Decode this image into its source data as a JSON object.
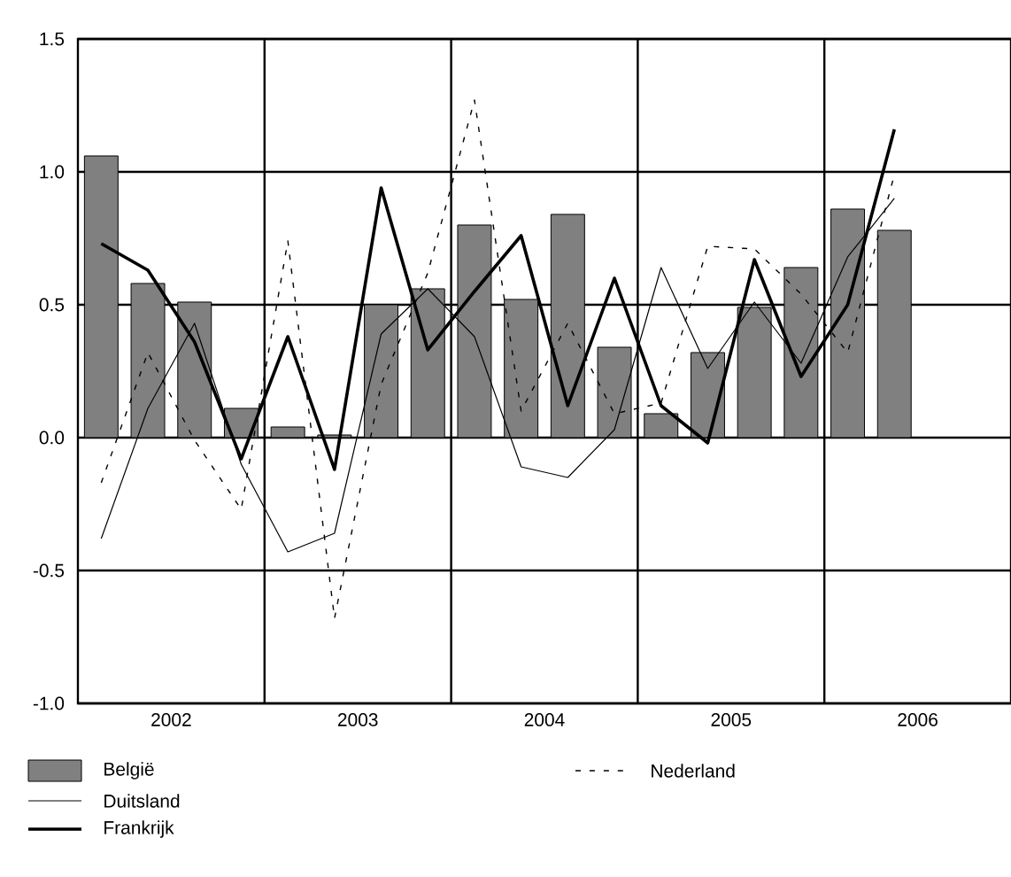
{
  "chart_data": {
    "type": "bar",
    "x": [
      2002.125,
      2002.375,
      2002.625,
      2002.875,
      2003.125,
      2003.375,
      2003.625,
      2003.875,
      2004.125,
      2004.375,
      2004.625,
      2004.875,
      2005.125,
      2005.375,
      2005.625,
      2005.875,
      2006.125,
      2006.375
    ],
    "xlim": [
      2002,
      2007
    ],
    "xticks": [
      {
        "value": 2002.5,
        "label": "2002"
      },
      {
        "value": 2003.5,
        "label": "2003"
      },
      {
        "value": 2004.5,
        "label": "2004"
      },
      {
        "value": 2005.5,
        "label": "2005"
      },
      {
        "value": 2006.5,
        "label": "2006"
      },
      {
        "value": 2003,
        "label": null
      },
      {
        "value": 2004,
        "label": null
      },
      {
        "value": 2005,
        "label": null
      },
      {
        "value": 2006,
        "label": null
      }
    ],
    "ylim": [
      -1,
      1.5
    ],
    "yticks": [
      {
        "value": -1,
        "label": "-1.0"
      },
      {
        "value": -0.5,
        "label": "-0.5"
      },
      {
        "value": 0,
        "label": "0.0"
      },
      {
        "value": 0.5,
        "label": "0.5"
      },
      {
        "value": 1,
        "label": "1.0"
      },
      {
        "value": 1.5,
        "label": "1.5"
      }
    ],
    "grid": true,
    "legend": "bottom",
    "series": [
      {
        "name": "België",
        "color": "#808080",
        "values": [
          1.06,
          0.58,
          0.51,
          0.11,
          0.04,
          0.01,
          0.5,
          0.56,
          0.8,
          0.52,
          0.84,
          0.34,
          0.09,
          0.32,
          0.49,
          0.64,
          0.86,
          0.78
        ]
      },
      {
        "name": "Duitsland",
        "type": "line",
        "line_style": "solid",
        "color": "#000000",
        "values": [
          -0.38,
          0.11,
          0.43,
          -0.1,
          -0.43,
          -0.36,
          0.39,
          0.56,
          0.38,
          -0.11,
          -0.15,
          0.03,
          0.64,
          0.26,
          0.51,
          0.28,
          0.68,
          0.9
        ]
      },
      {
        "name": "Frankrijk",
        "type": "line",
        "line_style": "solid",
        "color": "#000000",
        "values": [
          0.73,
          0.63,
          0.36,
          -0.08,
          0.38,
          -0.12,
          0.94,
          0.33,
          0.55,
          0.76,
          0.12,
          0.6,
          0.12,
          -0.02,
          0.67,
          0.23,
          0.5,
          1.16
        ]
      },
      {
        "name": "Nederland",
        "type": "line",
        "line_style": "dashed",
        "color": "#000000",
        "values": [
          -0.17,
          0.32,
          -0.01,
          -0.27,
          0.74,
          -0.68,
          0.2,
          0.62,
          1.27,
          0.1,
          0.43,
          0.09,
          0.13,
          0.72,
          0.71,
          0.54,
          0.32,
          0.99
        ]
      }
    ]
  }
}
